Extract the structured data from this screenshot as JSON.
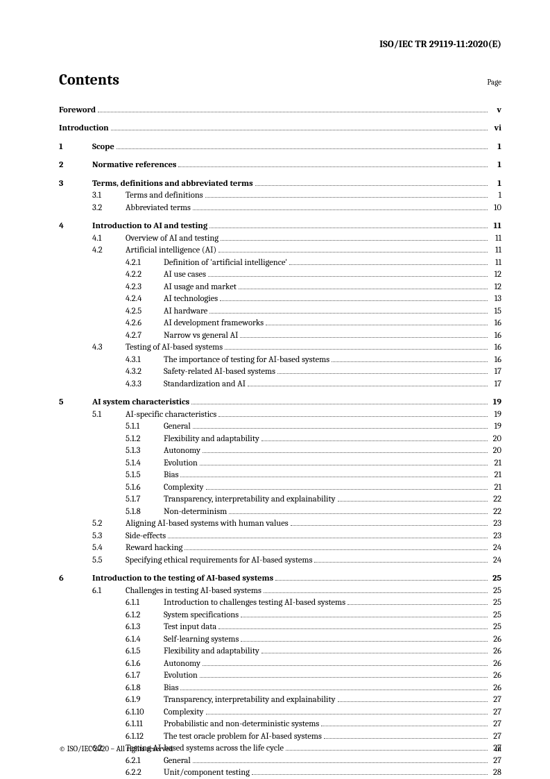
{
  "doc_id": "ISO/IEC TR 29119-11:2020(E)",
  "contents_title": "Contents",
  "page_label": "Page",
  "footer_left": "© ISO/IEC 2020 – All rights reserved",
  "footer_right": "iii",
  "toc": [
    {
      "level": 0,
      "num": "",
      "title": "Foreword",
      "page": "v",
      "bold": true,
      "spaced": false
    },
    {
      "level": 0,
      "num": "",
      "title": "Introduction",
      "page": "vi",
      "bold": true,
      "spaced": true
    },
    {
      "level": 0,
      "num": "1",
      "title": "Scope",
      "page": "1",
      "bold": true,
      "spaced": true
    },
    {
      "level": 0,
      "num": "2",
      "title": "Normative references",
      "page": "1",
      "bold": true,
      "spaced": true
    },
    {
      "level": 0,
      "num": "3",
      "title": "Terms, definitions and abbreviated terms",
      "page": "1",
      "bold": true,
      "spaced": true
    },
    {
      "level": 1,
      "num": "3.1",
      "title": "Terms and definitions",
      "page": "1"
    },
    {
      "level": 1,
      "num": "3.2",
      "title": "Abbreviated terms",
      "page": "10"
    },
    {
      "level": 0,
      "num": "4",
      "title": "Introduction to AI and testing",
      "page": "11",
      "bold": true,
      "spaced": true
    },
    {
      "level": 1,
      "num": "4.1",
      "title": "Overview of AI and testing",
      "page": "11"
    },
    {
      "level": 1,
      "num": "4.2",
      "title": "Artificial intelligence (AI)",
      "page": "11"
    },
    {
      "level": 2,
      "num": "4.2.1",
      "title": "Definition of 'artificial intelligence'",
      "page": "11"
    },
    {
      "level": 2,
      "num": "4.2.2",
      "title": "AI use cases",
      "page": "12"
    },
    {
      "level": 2,
      "num": "4.2.3",
      "title": "AI usage and market",
      "page": "12"
    },
    {
      "level": 2,
      "num": "4.2.4",
      "title": "AI technologies",
      "page": "13"
    },
    {
      "level": 2,
      "num": "4.2.5",
      "title": "AI hardware",
      "page": "15"
    },
    {
      "level": 2,
      "num": "4.2.6",
      "title": "AI development frameworks",
      "page": "16"
    },
    {
      "level": 2,
      "num": "4.2.7",
      "title": "Narrow vs general AI",
      "page": "16"
    },
    {
      "level": 1,
      "num": "4.3",
      "title": "Testing of AI-based systems",
      "page": "16"
    },
    {
      "level": 2,
      "num": "4.3.1",
      "title": "The importance of testing for AI-based systems",
      "page": "16"
    },
    {
      "level": 2,
      "num": "4.3.2",
      "title": "Safety-related AI-based systems",
      "page": "17"
    },
    {
      "level": 2,
      "num": "4.3.3",
      "title": "Standardization and AI",
      "page": "17"
    },
    {
      "level": 0,
      "num": "5",
      "title": "AI system characteristics",
      "page": "19",
      "bold": true,
      "spaced": true
    },
    {
      "level": 1,
      "num": "5.1",
      "title": "AI-specific characteristics",
      "page": "19"
    },
    {
      "level": 2,
      "num": "5.1.1",
      "title": "General",
      "page": "19"
    },
    {
      "level": 2,
      "num": "5.1.2",
      "title": "Flexibility and adaptability",
      "page": "20"
    },
    {
      "level": 2,
      "num": "5.1.3",
      "title": "Autonomy",
      "page": "20"
    },
    {
      "level": 2,
      "num": "5.1.4",
      "title": "Evolution",
      "page": "21"
    },
    {
      "level": 2,
      "num": "5.1.5",
      "title": "Bias",
      "page": "21"
    },
    {
      "level": 2,
      "num": "5.1.6",
      "title": "Complexity",
      "page": "21"
    },
    {
      "level": 2,
      "num": "5.1.7",
      "title": "Transparency, interpretability and explainability",
      "page": "22"
    },
    {
      "level": 2,
      "num": "5.1.8",
      "title": "Non-determinism",
      "page": "22"
    },
    {
      "level": 1,
      "num": "5.2",
      "title": "Aligning AI-based systems with human values",
      "page": "23"
    },
    {
      "level": 1,
      "num": "5.3",
      "title": "Side-effects",
      "page": "23"
    },
    {
      "level": 1,
      "num": "5.4",
      "title": "Reward hacking",
      "page": "24"
    },
    {
      "level": 1,
      "num": "5.5",
      "title": "Specifying ethical requirements for AI-based systems",
      "page": "24"
    },
    {
      "level": 0,
      "num": "6",
      "title": "Introduction to the testing of AI-based systems",
      "page": "25",
      "bold": true,
      "spaced": true
    },
    {
      "level": 1,
      "num": "6.1",
      "title": "Challenges in testing AI-based systems",
      "page": "25"
    },
    {
      "level": 2,
      "num": "6.1.1",
      "title": "Introduction to challenges testing AI-based systems",
      "page": "25"
    },
    {
      "level": 2,
      "num": "6.1.2",
      "title": "System specifications",
      "page": "25"
    },
    {
      "level": 2,
      "num": "6.1.3",
      "title": "Test input data",
      "page": "25"
    },
    {
      "level": 2,
      "num": "6.1.4",
      "title": "Self-learning systems",
      "page": "26"
    },
    {
      "level": 2,
      "num": "6.1.5",
      "title": "Flexibility and adaptability",
      "page": "26"
    },
    {
      "level": 2,
      "num": "6.1.6",
      "title": "Autonomy",
      "page": "26"
    },
    {
      "level": 2,
      "num": "6.1.7",
      "title": "Evolution",
      "page": "26"
    },
    {
      "level": 2,
      "num": "6.1.8",
      "title": "Bias",
      "page": "26"
    },
    {
      "level": 2,
      "num": "6.1.9",
      "title": "Transparency, interpretability and explainability",
      "page": "27"
    },
    {
      "level": 2,
      "num": "6.1.10",
      "title": "Complexity",
      "page": "27"
    },
    {
      "level": 2,
      "num": "6.1.11",
      "title": "Probabilistic and non-deterministic systems",
      "page": "27"
    },
    {
      "level": 2,
      "num": "6.1.12",
      "title": "The test oracle problem for AI-based systems",
      "page": "27"
    },
    {
      "level": 1,
      "num": "6.2",
      "title": "Testing AI-based systems across the life cycle",
      "page": "27"
    },
    {
      "level": 2,
      "num": "6.2.1",
      "title": "General",
      "page": "27"
    },
    {
      "level": 2,
      "num": "6.2.2",
      "title": "Unit/component testing",
      "page": "28"
    }
  ]
}
